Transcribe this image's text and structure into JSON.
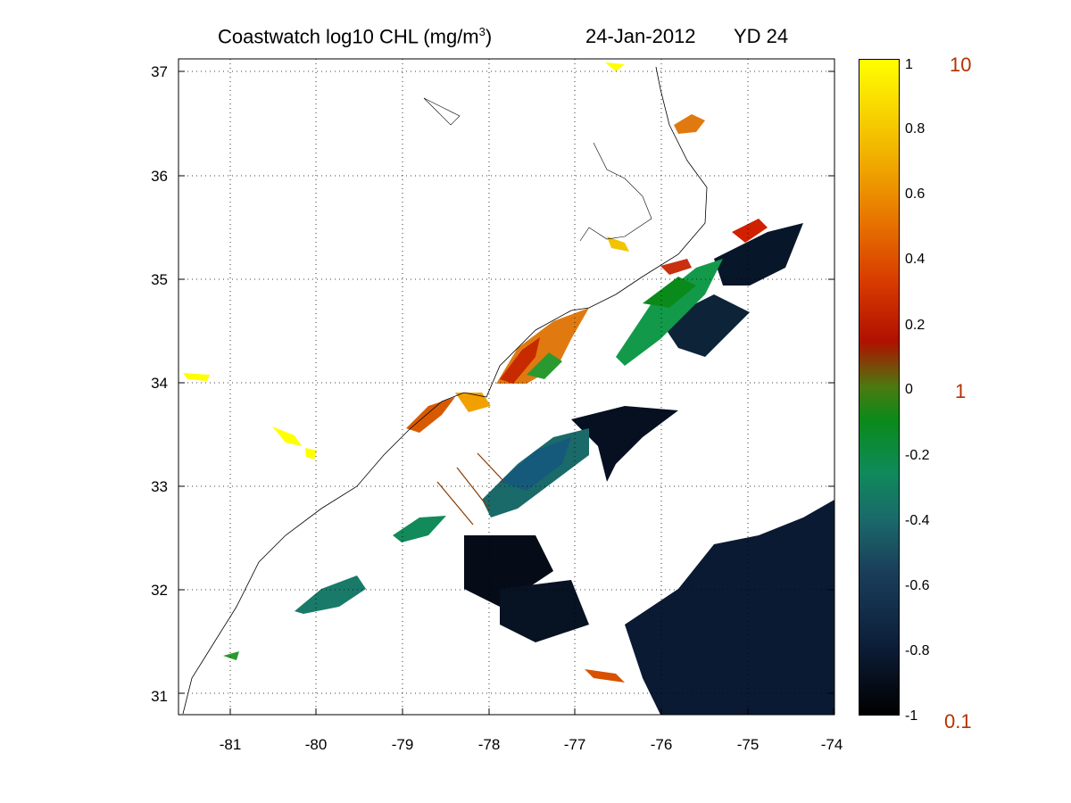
{
  "title": {
    "main": "Coastwatch  log10  CHL (mg/m",
    "sup": "3",
    "close": ")",
    "date": "24-Jan-2012",
    "yd": "YD 24"
  },
  "map": {
    "x_ticks": [
      "-81",
      "-80",
      "-79",
      "-78",
      "-77",
      "-76",
      "-75",
      "-74"
    ],
    "y_ticks": [
      "37",
      "36",
      "35",
      "34",
      "33",
      "32",
      "31"
    ],
    "lon_range": [
      -81.6,
      -74
    ],
    "lat_range": [
      30.8,
      37.1
    ]
  },
  "colorbar": {
    "log_ticks": [
      "1",
      "0.8",
      "0.6",
      "0.4",
      "0.2",
      "0",
      "-0.2",
      "-0.4",
      "-0.6",
      "-0.8",
      "-1"
    ],
    "linear_labels": [
      "10",
      "1",
      "0.1"
    ],
    "range": [
      -1,
      1
    ],
    "colors": {
      "high": "#ffff00",
      "upper": "#f2a000",
      "mid_high": "#d02000",
      "mid": "#0a8a1a",
      "mid_low": "#1a7a6a",
      "low": "#0d1f3a",
      "min": "#000000",
      "linear_label_color": "#b43200"
    }
  }
}
